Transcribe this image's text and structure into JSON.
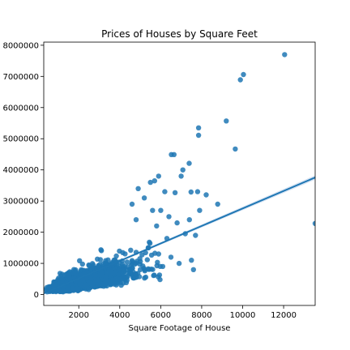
{
  "chart_data": {
    "type": "scatter",
    "title": "Prices of Houses by Square Feet",
    "xlabel": "Square Footage of House",
    "ylabel": "",
    "xlim": [
      290,
      13540
    ],
    "ylim": [
      -350000,
      8100000
    ],
    "xticks": [
      2000,
      4000,
      6000,
      8000,
      10000,
      12000
    ],
    "yticks": [
      0,
      1000000,
      2000000,
      3000000,
      4000000,
      5000000,
      6000000,
      7000000,
      8000000
    ],
    "grid": false,
    "legend": "none",
    "colors": {
      "points": "#1f77b4",
      "line": "#1f77b4",
      "band": "#aec7e8"
    },
    "series": [
      {
        "kind": "points",
        "points": [
          [
            12050,
            7700000
          ],
          [
            10040,
            7060000
          ],
          [
            9890,
            6890000
          ],
          [
            9200,
            5570000
          ],
          [
            7850,
            5350000
          ],
          [
            7850,
            5110000
          ],
          [
            9640,
            4670000
          ],
          [
            6520,
            4490000
          ],
          [
            6650,
            4490000
          ],
          [
            7390,
            4210000
          ],
          [
            7080,
            4000000
          ],
          [
            7000,
            3800000
          ],
          [
            5900,
            3800000
          ],
          [
            5700,
            3650000
          ],
          [
            8780,
            2900000
          ],
          [
            7800,
            3300000
          ],
          [
            8220,
            3200000
          ],
          [
            7480,
            3290000
          ],
          [
            6700,
            3270000
          ],
          [
            6200,
            3300000
          ],
          [
            5500,
            3600000
          ],
          [
            7400,
            2400000
          ],
          [
            7900,
            2700000
          ],
          [
            7200,
            1950000
          ],
          [
            7700,
            1900000
          ],
          [
            6400,
            2500000
          ],
          [
            6000,
            2700000
          ],
          [
            6800,
            2300000
          ],
          [
            6300,
            1800000
          ],
          [
            7500,
            1100000
          ],
          [
            7600,
            800000
          ],
          [
            6900,
            1000000
          ],
          [
            6500,
            1200000
          ],
          [
            13540,
            2280000
          ],
          [
            5800,
            2200000
          ],
          [
            5600,
            2700000
          ],
          [
            5200,
            3100000
          ],
          [
            4900,
            3400000
          ],
          [
            4600,
            2900000
          ],
          [
            5400,
            1500000
          ],
          [
            5900,
            1300000
          ],
          [
            6100,
            900000
          ],
          [
            5000,
            800000
          ],
          [
            4800,
            2400000
          ]
        ]
      },
      {
        "kind": "regression",
        "name": "",
        "slope": 280.6,
        "intercept": -43580,
        "x_range": [
          290,
          13540
        ]
      }
    ]
  }
}
